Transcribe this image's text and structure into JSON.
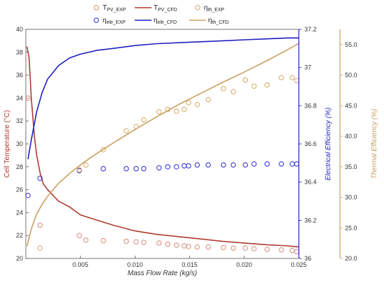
{
  "chart_data": {
    "type": "line",
    "x_axis": {
      "label": "Mass Flow Rate (kg/s)",
      "range": [
        0,
        0.025
      ],
      "ticks": [
        0.005,
        0.01,
        0.015,
        0.02,
        0.025
      ],
      "tick_labels": [
        "0.005",
        "0.010",
        "0.015",
        "0.020",
        "0.025"
      ]
    },
    "y_axes": {
      "left": {
        "label": "Cell Temperature (°C)",
        "range": [
          20,
          40
        ],
        "ticks": [
          20,
          22,
          24,
          26,
          28,
          30,
          32,
          34,
          36,
          38,
          40
        ],
        "tick_labels": [
          "20",
          "22",
          "24",
          "26",
          "28",
          "30",
          "32",
          "34",
          "36",
          "38",
          "40"
        ],
        "color": "#b03a2e"
      },
      "right1": {
        "label": "Electrical Efficiency (%)",
        "range": [
          36.0,
          37.2
        ],
        "ticks": [
          36.0,
          36.2,
          36.4,
          36.6,
          36.8,
          37.0,
          37.2
        ],
        "tick_labels": [
          "36",
          "36.2",
          "36.4",
          "36.6",
          "36.8",
          "37",
          "37.2"
        ],
        "color": "#1f1fbf"
      },
      "right2": {
        "label": "Thermal Efficiency (%)",
        "range": [
          20.0,
          57.5
        ],
        "ticks": [
          20.0,
          25.0,
          30.0,
          35.0,
          40.0,
          45.0,
          50.0,
          55.0
        ],
        "tick_labels": [
          "20.0",
          "25.0",
          "30.0",
          "35.0",
          "40.0",
          "45.0",
          "50.0",
          "55.0"
        ],
        "color": "#c8a060"
      }
    },
    "legend": {
      "placement": "top",
      "entries": [
        {
          "key": "tpv_exp",
          "base": "T",
          "sub": "PV_EXP",
          "style": "marker",
          "color": "#d98a7a"
        },
        {
          "key": "tpv_cfd",
          "base": "T",
          "sub": "PV_CFD",
          "style": "line",
          "color": "#b03a2e"
        },
        {
          "key": "eth_exp",
          "base": "η",
          "sub": "th_EXP",
          "style": "marker",
          "color": "#d6a860"
        },
        {
          "key": "eele_exp",
          "base": "η",
          "sub": "ele_EXP",
          "style": "marker",
          "color": "#2a2ad0"
        },
        {
          "key": "eele_cfd",
          "base": "η",
          "sub": "ele_CFD",
          "style": "line",
          "color": "#1f1fbf"
        },
        {
          "key": "eth_cfd",
          "base": "η",
          "sub": "th_CFD",
          "style": "line",
          "color": "#c8a060"
        }
      ]
    },
    "series": [
      {
        "key": "tpv_cfd",
        "axis": "left",
        "style": "line",
        "color": "#b03a2e",
        "x": [
          0.0001,
          0.0003,
          0.0005,
          0.0008,
          0.001,
          0.0013,
          0.0016,
          0.002,
          0.0025,
          0.003,
          0.004,
          0.005,
          0.006,
          0.008,
          0.01,
          0.012,
          0.014,
          0.016,
          0.018,
          0.02,
          0.022,
          0.024,
          0.025
        ],
        "y": [
          38.5,
          37.5,
          34.0,
          30.5,
          29.0,
          27.5,
          26.5,
          26.0,
          25.5,
          25.0,
          24.5,
          23.8,
          23.5,
          22.9,
          22.4,
          22.1,
          21.9,
          21.7,
          21.5,
          21.35,
          21.2,
          21.1,
          21.0
        ]
      },
      {
        "key": "tpv_exp",
        "axis": "left",
        "style": "marker",
        "color": "#d98a7a",
        "x": [
          0.0002,
          0.0013,
          0.0049,
          0.0055,
          0.0071,
          0.0092,
          0.0101,
          0.0108,
          0.0122,
          0.013,
          0.0138,
          0.0145,
          0.0149,
          0.0157,
          0.0167,
          0.0181,
          0.019,
          0.0201,
          0.0209,
          0.0221,
          0.0234,
          0.0244,
          0.0248
        ],
        "y": [
          34.0,
          22.9,
          22.0,
          21.6,
          21.55,
          21.5,
          21.45,
          21.4,
          21.35,
          21.25,
          21.15,
          21.1,
          21.05,
          21.0,
          21.0,
          20.95,
          20.9,
          20.9,
          20.85,
          20.8,
          20.75,
          20.7,
          20.6
        ]
      },
      {
        "key": "eele_cfd",
        "axis": "right1",
        "style": "line",
        "color": "#1f1fbf",
        "x": [
          0.0002,
          0.0005,
          0.001,
          0.0015,
          0.002,
          0.003,
          0.004,
          0.005,
          0.0065,
          0.008,
          0.01,
          0.012,
          0.014,
          0.016,
          0.018,
          0.02,
          0.022,
          0.024,
          0.025
        ],
        "y": [
          36.52,
          36.62,
          36.77,
          36.87,
          36.94,
          37.01,
          37.05,
          37.07,
          37.09,
          37.1,
          37.115,
          37.125,
          37.13,
          37.135,
          37.14,
          37.145,
          37.15,
          37.155,
          37.155
        ]
      },
      {
        "key": "eele_exp",
        "axis": "right1",
        "style": "marker",
        "color": "#2a2ad0",
        "x": [
          0.0002,
          0.0013,
          0.0049,
          0.0071,
          0.0092,
          0.0101,
          0.0108,
          0.0122,
          0.013,
          0.0138,
          0.0145,
          0.0149,
          0.0157,
          0.0167,
          0.0181,
          0.019,
          0.0201,
          0.0209,
          0.0221,
          0.0234,
          0.0244,
          0.0248
        ],
        "y": [
          36.33,
          36.42,
          36.46,
          36.47,
          36.47,
          36.47,
          36.47,
          36.475,
          36.48,
          36.48,
          36.485,
          36.485,
          36.49,
          36.49,
          36.49,
          36.49,
          36.49,
          36.495,
          36.495,
          36.495,
          36.495,
          36.495
        ]
      },
      {
        "key": "eth_cfd",
        "axis": "right2",
        "style": "line",
        "color": "#c8a060",
        "x": [
          0.0001,
          0.0005,
          0.001,
          0.0015,
          0.002,
          0.003,
          0.004,
          0.005,
          0.006,
          0.008,
          0.01,
          0.012,
          0.014,
          0.016,
          0.018,
          0.02,
          0.022,
          0.024,
          0.025
        ],
        "y": [
          22.0,
          24.8,
          27.3,
          28.9,
          30.2,
          32.3,
          33.9,
          35.3,
          36.6,
          38.9,
          41.1,
          43.2,
          45.2,
          47.0,
          48.8,
          50.5,
          52.3,
          54.2,
          55.2
        ]
      },
      {
        "key": "eth_exp",
        "axis": "right2",
        "style": "marker",
        "color": "#d6a860",
        "x": [
          0.0013,
          0.0049,
          0.0055,
          0.0071,
          0.0092,
          0.0101,
          0.0108,
          0.0122,
          0.013,
          0.0138,
          0.0145,
          0.0149,
          0.0157,
          0.0167,
          0.0181,
          0.019,
          0.0201,
          0.0209,
          0.0221,
          0.0234,
          0.0244,
          0.0248
        ],
        "y": [
          21.7,
          34.5,
          35.3,
          37.8,
          40.9,
          41.6,
          42.7,
          44.0,
          44.4,
          44.1,
          44.4,
          45.5,
          45.2,
          46.0,
          47.8,
          47.3,
          49.2,
          48.2,
          48.4,
          49.6,
          49.6,
          49.1
        ]
      }
    ]
  }
}
